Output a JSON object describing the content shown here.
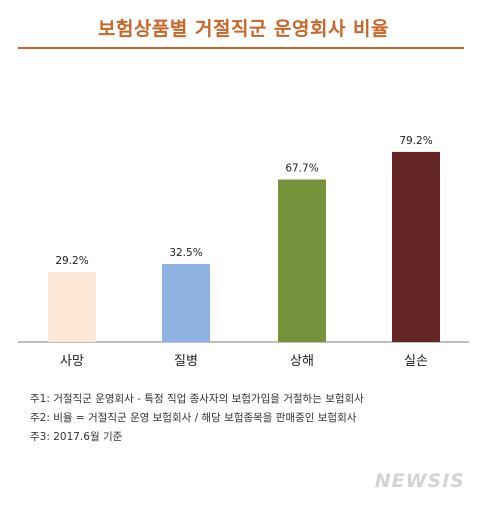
{
  "title": "보험상품별 거절직군 운영회사 비율",
  "chart_data": {
    "type": "bar",
    "categories": [
      "사망",
      "질병",
      "상해",
      "실손"
    ],
    "values": [
      29.2,
      32.5,
      67.7,
      79.2
    ],
    "data_labels": [
      "29.2%",
      "32.5%",
      "67.7%",
      "79.2%"
    ],
    "colors": [
      "#fde8d8",
      "#8eb3e0",
      "#76923c",
      "#632523"
    ],
    "ylim": [
      0,
      100
    ],
    "grid": false,
    "legend": "none"
  },
  "notes": [
    "주1: 거절직군 운영회사 - 특정 직업 종사자의 보험가입을 거절하는 보험회사",
    "주2: 비율 = 거절직군 운영 보험회사 / 해당 보험종목을 판매중인 보험회사",
    "주3: 2017.6월 기준"
  ],
  "watermark": "NEWSIS"
}
